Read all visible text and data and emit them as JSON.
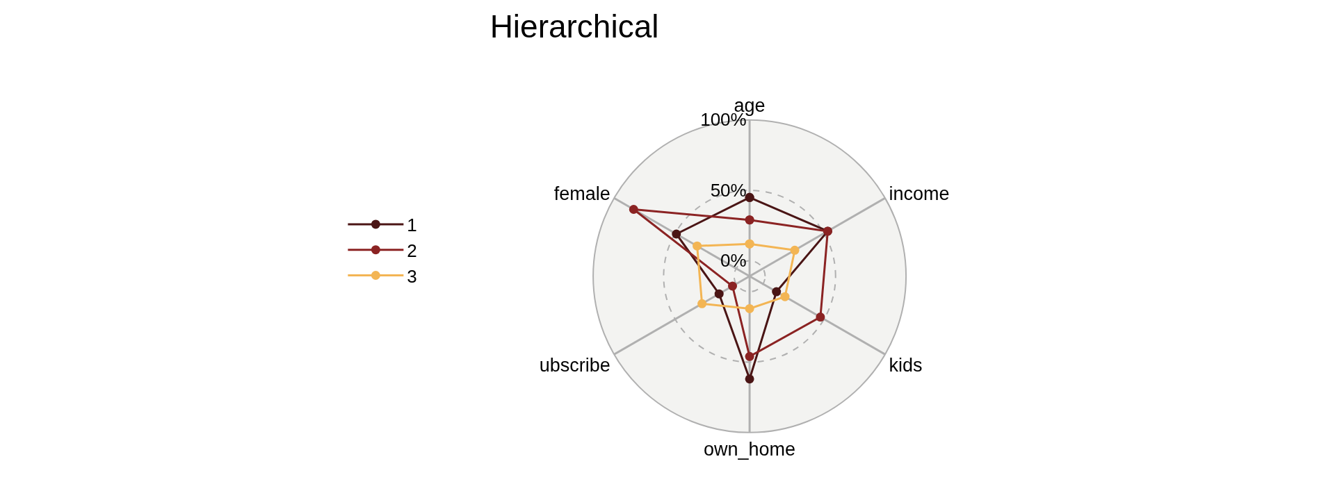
{
  "chart_data": {
    "type": "radar",
    "title": "Hierarchical",
    "categories": [
      "age",
      "income",
      "kids",
      "own_home",
      "ubscribe",
      "female"
    ],
    "series": [
      {
        "name": "1",
        "color": "#4a1515",
        "values": [
          45,
          53,
          11,
          62,
          14,
          49
        ]
      },
      {
        "name": "2",
        "color": "#8b2323",
        "values": [
          29,
          53,
          47,
          46,
          3,
          84
        ]
      },
      {
        "name": "3",
        "color": "#f3b554",
        "values": [
          12,
          26,
          18,
          12,
          28,
          32
        ]
      }
    ],
    "ylim": [
      -11,
      100
    ],
    "yticks": [
      {
        "value": 0,
        "label": "0%"
      },
      {
        "value": 50,
        "label": "50%"
      },
      {
        "value": 100,
        "label": "100%"
      }
    ],
    "grid": true,
    "legend": "left",
    "marker": "circle"
  }
}
